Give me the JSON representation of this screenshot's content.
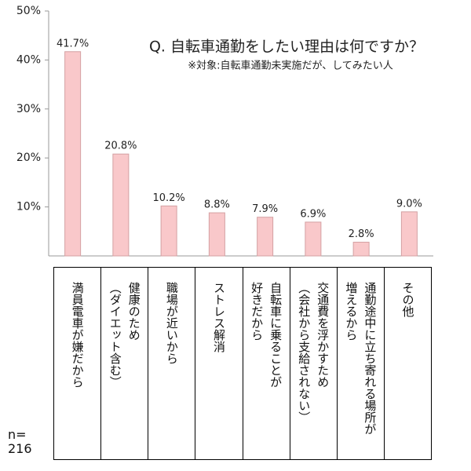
{
  "chart_data": {
    "type": "bar",
    "title": "Q. 自転車通勤をしたい理由は何ですか？",
    "subtitle": "※対象:自転車通勤未実施だが、してみたい人",
    "categories": [
      "満員電車が嫌だから",
      "健康のため\n（ダイエット含む）",
      "職場が近いから",
      "ストレス解消",
      "自転車に乗ることが\n好きだから",
      "交通費を浮かすため\n（会社から支給されない）",
      "通勤途中に立ち寄れる場所が\n増えるから",
      "その他"
    ],
    "values": [
      41.7,
      20.8,
      10.2,
      8.8,
      7.9,
      6.9,
      2.8,
      9.0
    ],
    "value_labels": [
      "41.7%",
      "20.8%",
      "10.2%",
      "8.8%",
      "7.9%",
      "6.9%",
      "2.8%",
      "9.0%"
    ],
    "color": "#f9c8ca",
    "ylim": [
      0,
      50
    ],
    "yticks": [
      {
        "value": 10,
        "label": "10%"
      },
      {
        "value": 20,
        "label": "20%"
      },
      {
        "value": 30,
        "label": "30%"
      },
      {
        "value": 40,
        "label": "40%"
      },
      {
        "value": 50,
        "label": "50%"
      }
    ],
    "grid": false,
    "note": "n=\n216"
  }
}
